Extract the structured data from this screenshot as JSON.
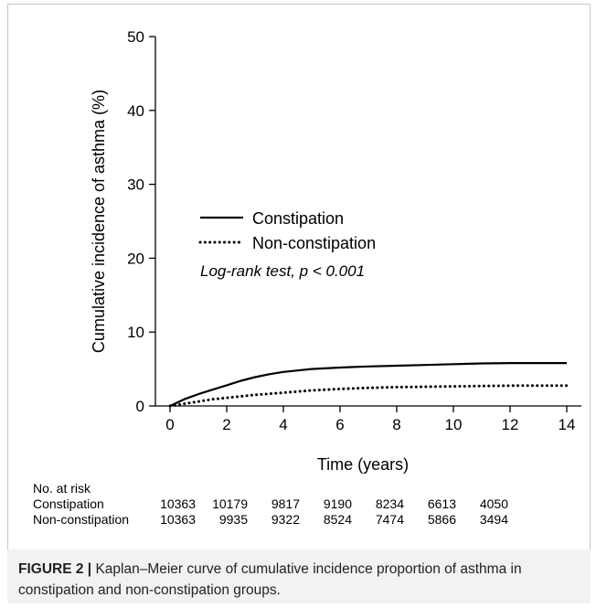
{
  "chart_data": {
    "type": "line",
    "xlabel": "Time (years)",
    "ylabel": "Cumulative incidence of asthma (%)",
    "xlim": [
      0,
      14
    ],
    "ylim": [
      0,
      50
    ],
    "x_ticks": [
      0,
      2,
      4,
      6,
      8,
      10,
      12,
      14
    ],
    "y_ticks": [
      0,
      10,
      20,
      30,
      40,
      50
    ],
    "grid": false,
    "legend_position": "middle-left",
    "series": [
      {
        "name": "Constipation",
        "style": "solid",
        "color": "#000000",
        "x": [
          0,
          0.5,
          1,
          1.5,
          2,
          2.5,
          3,
          3.5,
          4,
          4.5,
          5,
          6,
          7,
          8,
          9,
          10,
          11,
          12,
          13,
          14
        ],
        "y": [
          0,
          0.9,
          1.6,
          2.2,
          2.8,
          3.4,
          3.9,
          4.3,
          4.6,
          4.8,
          5.0,
          5.2,
          5.35,
          5.45,
          5.55,
          5.65,
          5.75,
          5.8,
          5.8,
          5.8
        ]
      },
      {
        "name": "Non-constipation",
        "style": "dotted",
        "color": "#000000",
        "x": [
          0,
          0.5,
          1,
          1.5,
          2,
          2.5,
          3,
          4,
          5,
          6,
          7,
          8,
          9,
          10,
          11,
          12,
          13,
          14
        ],
        "y": [
          0,
          0.3,
          0.6,
          0.9,
          1.1,
          1.3,
          1.5,
          1.8,
          2.1,
          2.3,
          2.45,
          2.55,
          2.6,
          2.65,
          2.7,
          2.75,
          2.75,
          2.75
        ]
      }
    ],
    "annotation": "Log-rank test, p < 0.001"
  },
  "risk_table": {
    "title": "No. at risk",
    "rows": [
      {
        "label": "Constipation",
        "values": [
          "10363",
          "10179",
          "9817",
          "9190",
          "8234",
          "6613",
          "4050"
        ]
      },
      {
        "label": "Non-constipation",
        "values": [
          "10363",
          "9935",
          "9322",
          "8524",
          "7474",
          "5866",
          "3494"
        ]
      }
    ]
  },
  "caption": {
    "label": "FIGURE 2 |",
    "text": " Kaplan–Meier curve of cumulative incidence proportion of asthma in constipation and non-constipation groups."
  }
}
